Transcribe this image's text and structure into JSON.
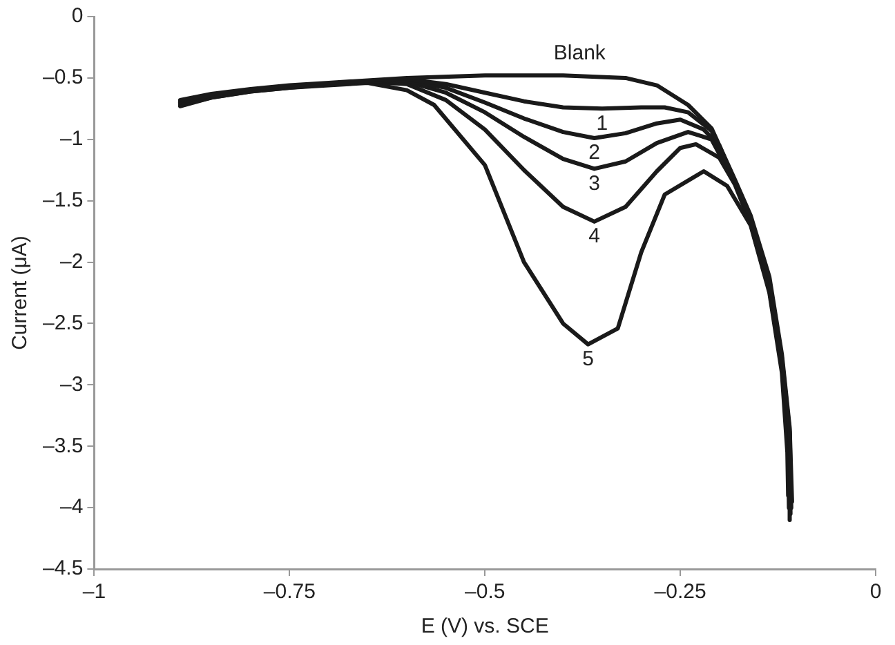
{
  "chart_data": {
    "type": "line",
    "xlabel": "E (V) vs. SCE",
    "ylabel": "Current (μA)",
    "xlim": [
      -1,
      0
    ],
    "xticks": [
      {
        "value": -1,
        "label": "–1"
      },
      {
        "value": -0.75,
        "label": "–0.75"
      },
      {
        "value": -0.5,
        "label": "–0.5"
      },
      {
        "value": -0.25,
        "label": "–0.25"
      },
      0
    ],
    "ylim": [
      -4.5,
      0
    ],
    "yticks": [
      {
        "value": -4.5,
        "label": "–4.5"
      },
      {
        "value": -4,
        "label": "–4"
      },
      {
        "value": -3.5,
        "label": "–3.5"
      },
      {
        "value": -3,
        "label": "–3"
      },
      {
        "value": -2.5,
        "label": "–2.5"
      },
      {
        "value": -2,
        "label": "–2"
      },
      {
        "value": -1.5,
        "label": "–1.5"
      },
      {
        "value": -1,
        "label": "–1"
      },
      {
        "value": -0.5,
        "label": "–0.5"
      },
      0
    ],
    "grid": false,
    "legend": false,
    "marker": "none",
    "line_style": "solid",
    "series": [
      {
        "name": "Blank",
        "color": "#1a1a1a",
        "x": [
          -0.89,
          -0.85,
          -0.8,
          -0.75,
          -0.7,
          -0.65,
          -0.6,
          -0.5,
          -0.4,
          -0.32,
          -0.28,
          -0.24,
          -0.21,
          -0.18,
          -0.16,
          -0.136,
          -0.12,
          -0.11,
          -0.107
        ],
        "values": [
          -0.68,
          -0.63,
          -0.59,
          -0.56,
          -0.54,
          -0.52,
          -0.5,
          -0.48,
          -0.48,
          -0.5,
          -0.56,
          -0.72,
          -0.91,
          -1.33,
          -1.62,
          -2.12,
          -2.75,
          -3.35,
          -3.95
        ]
      },
      {
        "name": "1",
        "color": "#1a1a1a",
        "x": [
          -0.89,
          -0.85,
          -0.8,
          -0.75,
          -0.7,
          -0.65,
          -0.6,
          -0.55,
          -0.5,
          -0.45,
          -0.4,
          -0.35,
          -0.3,
          -0.27,
          -0.24,
          -0.21,
          -0.18,
          -0.16,
          -0.136,
          -0.12,
          -0.11,
          -0.108
        ],
        "values": [
          -0.69,
          -0.64,
          -0.6,
          -0.57,
          -0.55,
          -0.53,
          -0.51,
          -0.55,
          -0.62,
          -0.69,
          -0.74,
          -0.75,
          -0.74,
          -0.74,
          -0.78,
          -0.93,
          -1.34,
          -1.64,
          -2.15,
          -2.78,
          -3.38,
          -4.0
        ]
      },
      {
        "name": "2",
        "color": "#1a1a1a",
        "x": [
          -0.89,
          -0.85,
          -0.8,
          -0.75,
          -0.7,
          -0.65,
          -0.6,
          -0.55,
          -0.5,
          -0.45,
          -0.4,
          -0.36,
          -0.32,
          -0.28,
          -0.25,
          -0.22,
          -0.2,
          -0.18,
          -0.16,
          -0.136,
          -0.12,
          -0.11,
          -0.109
        ],
        "values": [
          -0.7,
          -0.64,
          -0.6,
          -0.57,
          -0.55,
          -0.53,
          -0.52,
          -0.58,
          -0.7,
          -0.83,
          -0.94,
          -0.99,
          -0.95,
          -0.87,
          -0.84,
          -0.92,
          -1.05,
          -1.35,
          -1.65,
          -2.17,
          -2.8,
          -3.4,
          -4.05
        ]
      },
      {
        "name": "3",
        "color": "#1a1a1a",
        "x": [
          -0.89,
          -0.85,
          -0.8,
          -0.75,
          -0.7,
          -0.65,
          -0.6,
          -0.55,
          -0.5,
          -0.45,
          -0.4,
          -0.36,
          -0.32,
          -0.28,
          -0.24,
          -0.21,
          -0.18,
          -0.16,
          -0.136,
          -0.12,
          -0.11,
          -0.11
        ],
        "values": [
          -0.71,
          -0.65,
          -0.6,
          -0.57,
          -0.55,
          -0.53,
          -0.53,
          -0.62,
          -0.78,
          -0.98,
          -1.16,
          -1.24,
          -1.18,
          -1.03,
          -0.94,
          -1.0,
          -1.36,
          -1.67,
          -2.2,
          -2.83,
          -3.45,
          -4.1
        ]
      },
      {
        "name": "4",
        "color": "#1a1a1a",
        "x": [
          -0.89,
          -0.85,
          -0.8,
          -0.75,
          -0.7,
          -0.65,
          -0.6,
          -0.55,
          -0.5,
          -0.45,
          -0.4,
          -0.36,
          -0.32,
          -0.28,
          -0.25,
          -0.23,
          -0.2,
          -0.18,
          -0.16,
          -0.136,
          -0.12,
          -0.112,
          -0.111
        ],
        "values": [
          -0.72,
          -0.66,
          -0.61,
          -0.58,
          -0.55,
          -0.53,
          -0.55,
          -0.68,
          -0.92,
          -1.25,
          -1.55,
          -1.67,
          -1.55,
          -1.26,
          -1.07,
          -1.04,
          -1.15,
          -1.37,
          -1.69,
          -2.23,
          -2.86,
          -3.5,
          -4.0
        ]
      },
      {
        "name": "5",
        "color": "#1a1a1a",
        "x": [
          -0.89,
          -0.85,
          -0.8,
          -0.75,
          -0.7,
          -0.65,
          -0.6,
          -0.565,
          -0.5,
          -0.45,
          -0.4,
          -0.368,
          -0.33,
          -0.3,
          -0.27,
          -0.22,
          -0.19,
          -0.16,
          -0.136,
          -0.12,
          -0.113,
          -0.112
        ],
        "values": [
          -0.73,
          -0.66,
          -0.61,
          -0.58,
          -0.56,
          -0.54,
          -0.6,
          -0.72,
          -1.21,
          -2.0,
          -2.5,
          -2.67,
          -2.54,
          -1.92,
          -1.45,
          -1.26,
          -1.38,
          -1.7,
          -2.25,
          -2.9,
          -3.55,
          -3.9
        ]
      }
    ]
  }
}
